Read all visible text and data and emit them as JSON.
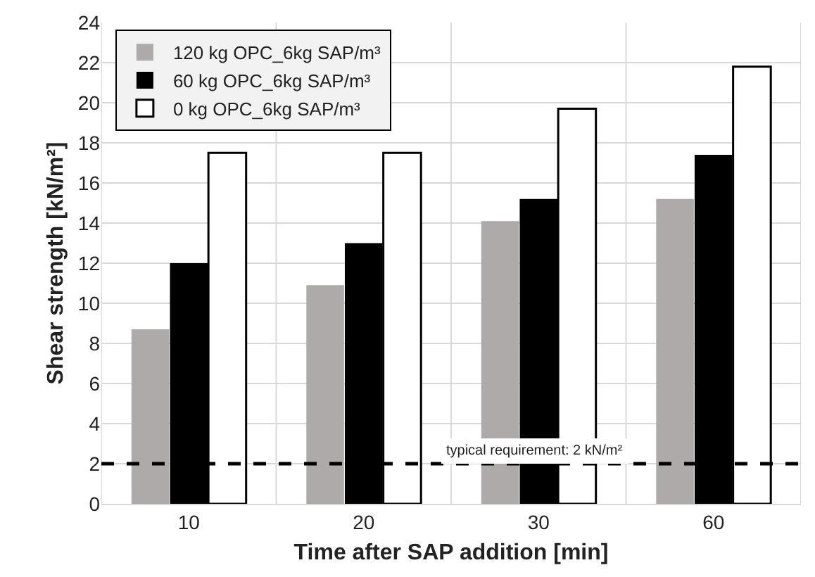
{
  "chart_data": {
    "type": "bar",
    "xlabel": "Time after SAP addition [min]",
    "ylabel": "Shear strength [kN/m²]",
    "categories": [
      "10",
      "20",
      "30",
      "60"
    ],
    "series": [
      {
        "name": "120 kg OPC_6kg SAP/m³",
        "color": "#aeaaaa",
        "values": [
          8.7,
          10.9,
          14.1,
          15.2
        ]
      },
      {
        "name": "60 kg OPC_6kg SAP/m³",
        "color": "#000000",
        "values": [
          12.0,
          13.0,
          15.2,
          17.4
        ]
      },
      {
        "name": "0 kg OPC_6kg SAP/m³",
        "color": "#ffffff",
        "values": [
          17.5,
          17.5,
          19.7,
          21.8
        ]
      }
    ],
    "ylim": [
      0,
      24
    ],
    "yticks": [
      0,
      2,
      4,
      6,
      8,
      10,
      12,
      14,
      16,
      18,
      20,
      22,
      24
    ],
    "ref_lines": [
      {
        "axis": "y",
        "value": 2,
        "label": "typical requirement: 2 kN/m²",
        "color": "#000000",
        "line_style": "dashed"
      }
    ],
    "grid": true,
    "legend": "top left"
  }
}
